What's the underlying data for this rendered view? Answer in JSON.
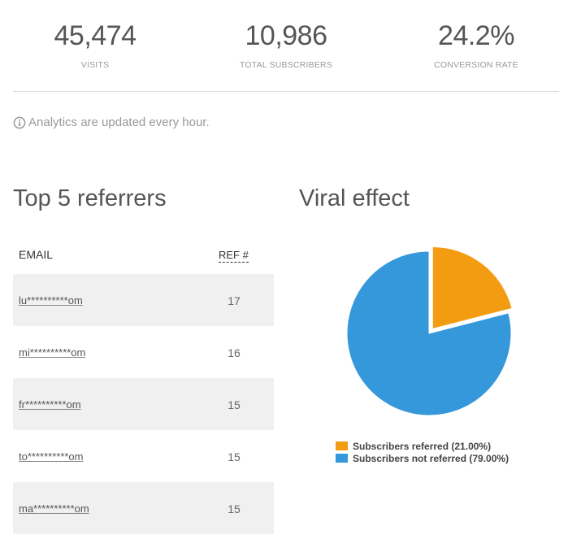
{
  "stats": [
    {
      "value": "45,474",
      "label": "VISITS"
    },
    {
      "value": "10,986",
      "label": "TOTAL SUBSCRIBERS"
    },
    {
      "value": "24.2%",
      "label": "CONVERSION RATE"
    }
  ],
  "notice": {
    "icon": "info-circle-icon",
    "text": "Analytics are updated every hour."
  },
  "referrers": {
    "title": "Top 5 referrers",
    "col_email": "EMAIL",
    "col_ref": "REF #",
    "rows": [
      {
        "email": "lu**********om",
        "ref": "17"
      },
      {
        "email": "mi**********om",
        "ref": "16"
      },
      {
        "email": "fr**********om",
        "ref": "15"
      },
      {
        "email": "to**********om",
        "ref": "15"
      },
      {
        "email": "ma**********om",
        "ref": "15"
      }
    ]
  },
  "viral": {
    "title": "Viral effect"
  },
  "chart_data": {
    "type": "pie",
    "slices": [
      {
        "label": "Subscribers referred (21.00%)",
        "value": 21.0,
        "color": "#f39c12",
        "exploded": true
      },
      {
        "label": "Subscribers not referred (79.00%)",
        "value": 79.0,
        "color": "#3498db",
        "exploded": false
      }
    ],
    "legend": "bottom"
  }
}
